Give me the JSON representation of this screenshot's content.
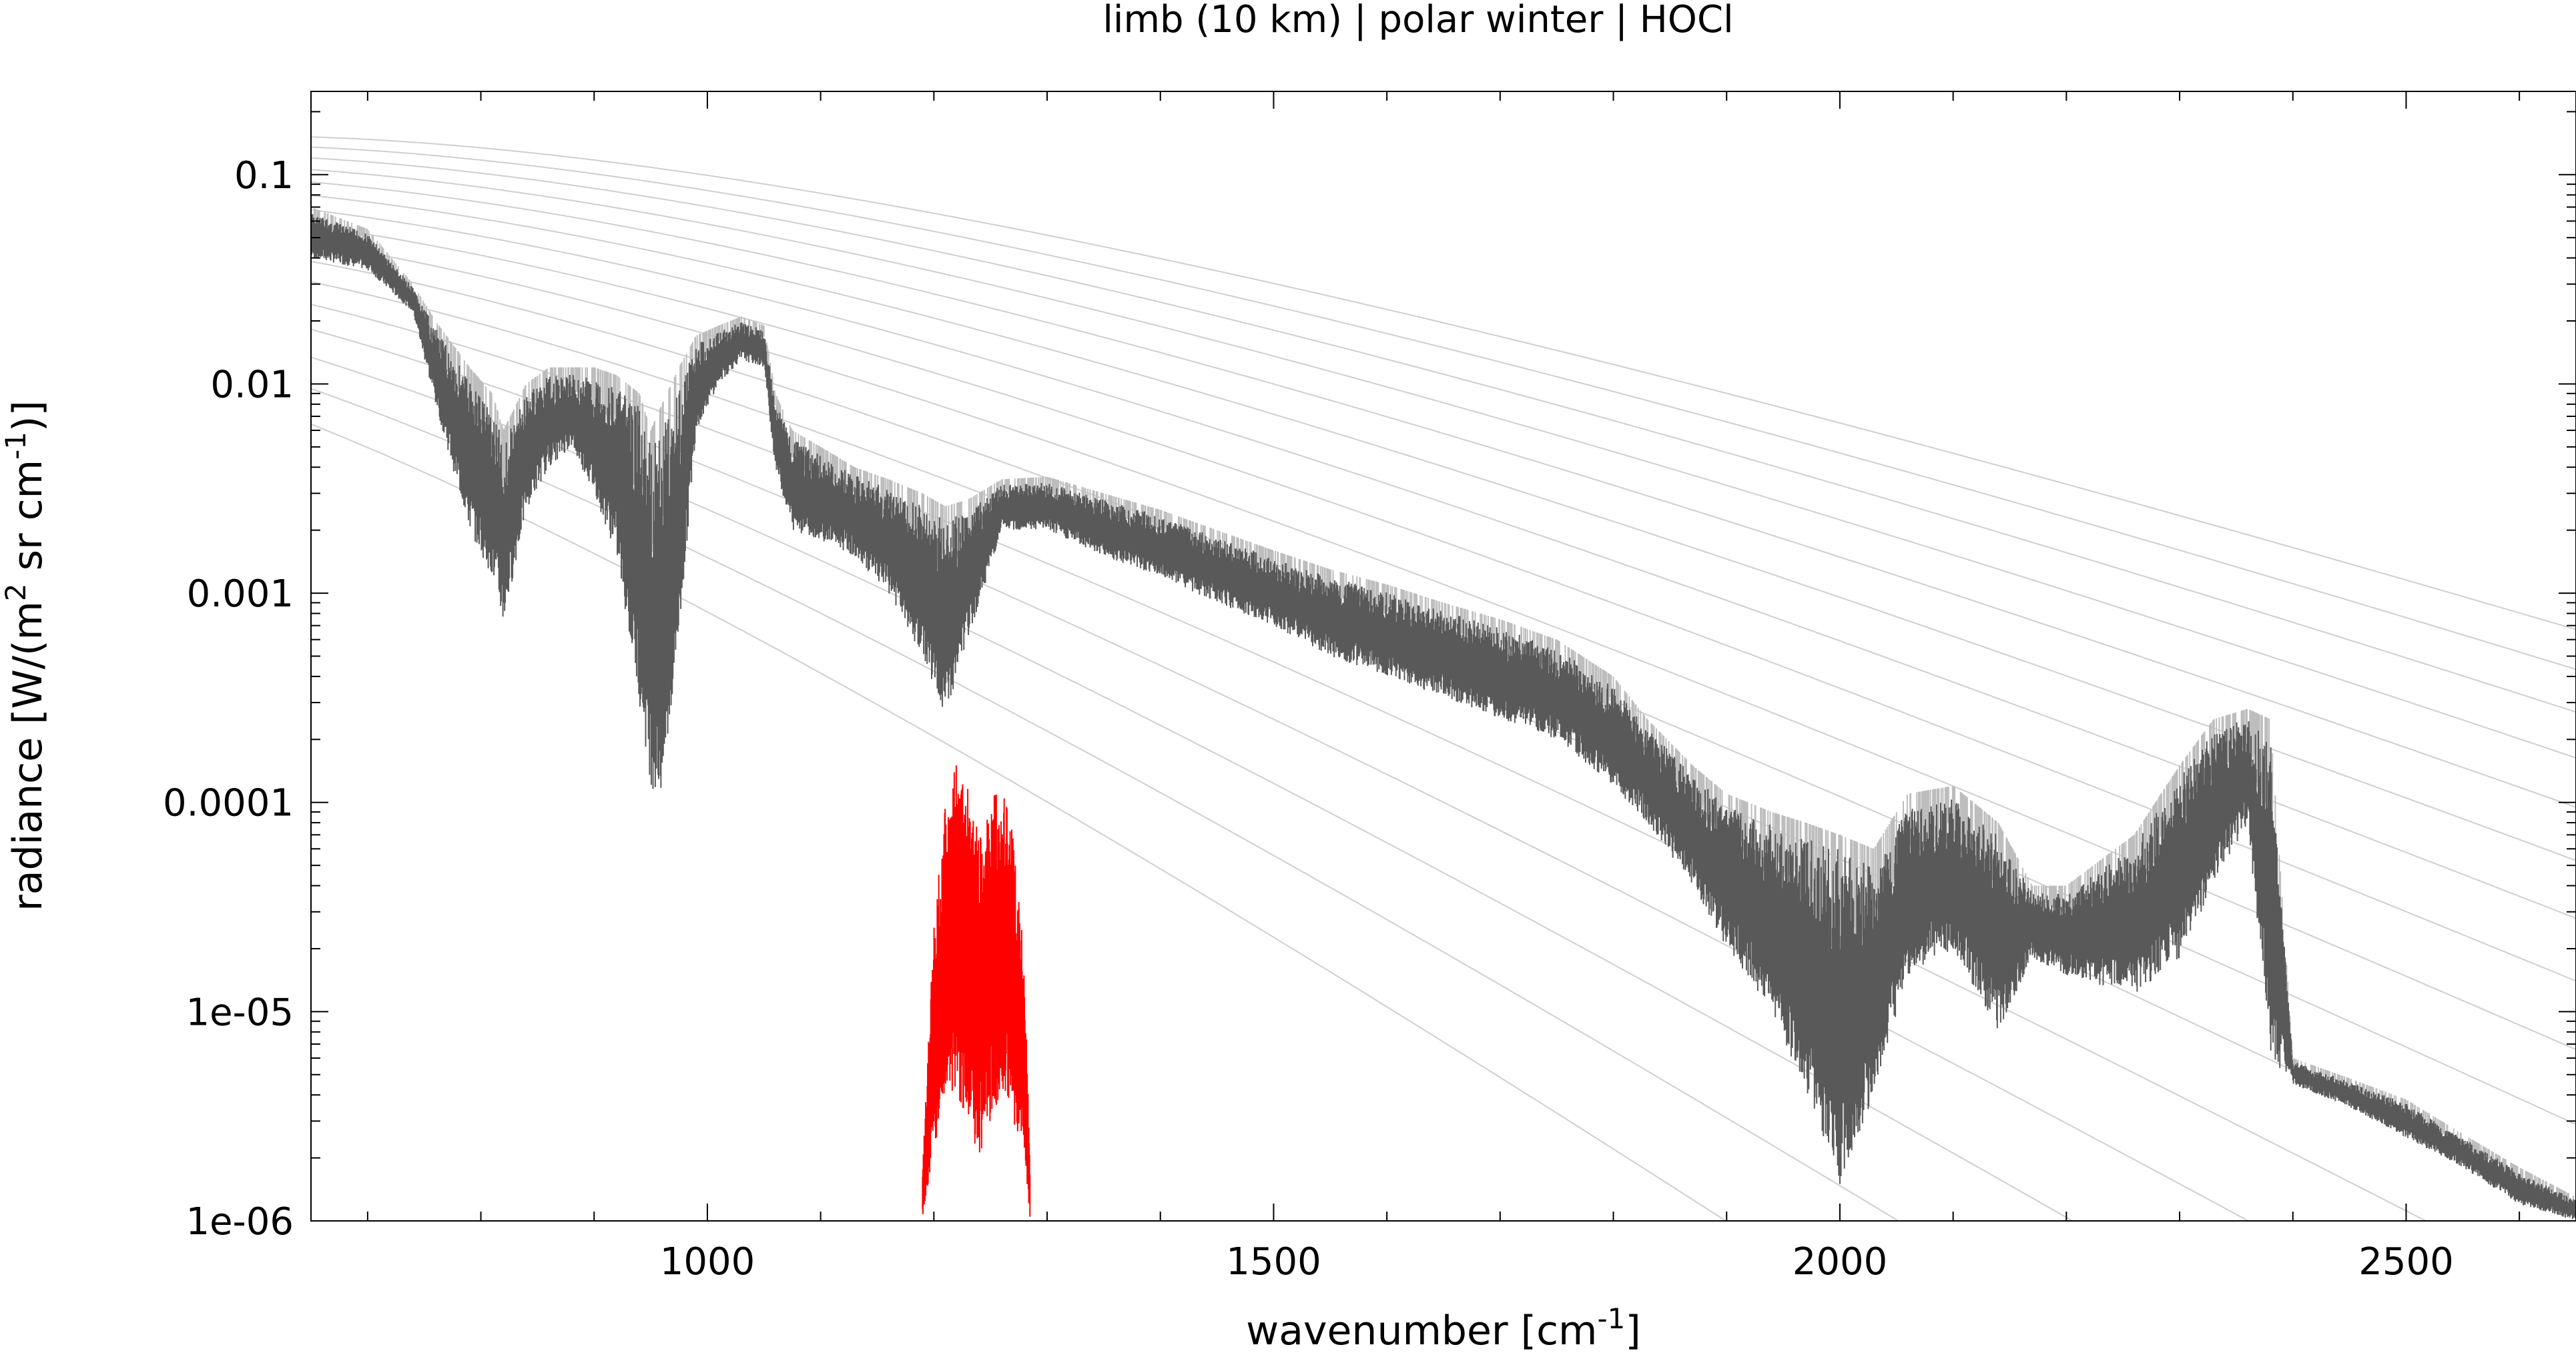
{
  "chart_data": {
    "type": "line",
    "title": "limb (10 km) | polar winter | HOCl",
    "xlabel": {
      "base": "wavenumber [cm",
      "sup": "-1",
      "end": "]"
    },
    "ylabel": {
      "base": "radiance [W/(m",
      "sup1": "2",
      "mid": " sr cm",
      "sup2": "-1",
      "end": ")]"
    },
    "xlim": [
      650,
      2650
    ],
    "ylim": [
      1e-06,
      0.25
    ],
    "yscale": "log",
    "grid": false,
    "legend": "none",
    "x_ticks": [
      1000,
      1500,
      2000,
      2500
    ],
    "x_tick_labels": [
      "1000",
      "1500",
      "2000",
      "2500"
    ],
    "y_ticks": [
      0.1,
      0.01,
      0.001,
      0.0001,
      1e-05,
      1e-06
    ],
    "y_tick_labels": [
      "0.1",
      "0.01",
      "0.001",
      "0.0001",
      "1e-05",
      "1e-06"
    ],
    "colors": {
      "spectrum": "#595959",
      "spectrum_light": "#bdbdbd",
      "hocl": "#ff0000",
      "planck": "#cfcfcf"
    },
    "series": [
      {
        "role": "total spectrum (dark gray envelope)",
        "x": [
          650,
          700,
          740,
          760,
          790,
          810,
          820,
          840,
          860,
          880,
          900,
          920,
          940,
          950,
          960,
          975,
          990,
          1010,
          1030,
          1050,
          1060,
          1075,
          1100,
          1130,
          1160,
          1190,
          1210,
          1230,
          1260,
          1300,
          1350,
          1400,
          1450,
          1500,
          1550,
          1600,
          1650,
          1700,
          1750,
          1800,
          1830,
          1870,
          1900,
          1940,
          1970,
          2000,
          2030,
          2060,
          2100,
          2140,
          2170,
          2200,
          2260,
          2300,
          2330,
          2360,
          2380,
          2400,
          2450,
          2500,
          2550,
          2600,
          2650
        ],
        "low": [
          0.04,
          0.035,
          0.022,
          0.008,
          0.002,
          0.0012,
          0.0007,
          0.0025,
          0.004,
          0.005,
          0.003,
          0.0015,
          0.0003,
          0.00012,
          0.0001,
          0.0006,
          0.006,
          0.01,
          0.013,
          0.012,
          0.004,
          0.002,
          0.0018,
          0.0015,
          0.001,
          0.0005,
          0.00025,
          0.0006,
          0.002,
          0.002,
          0.0015,
          0.0012,
          0.0009,
          0.0007,
          0.0005,
          0.0004,
          0.00032,
          0.00025,
          0.0002,
          0.00012,
          8e-05,
          4e-05,
          2e-05,
          1e-05,
          4e-06,
          1.5e-06,
          4e-06,
          1.5e-05,
          2e-05,
          8e-06,
          1.8e-05,
          1.5e-05,
          1.2e-05,
          1.8e-05,
          4e-05,
          8e-05,
          6e-06,
          4.5e-06,
          3.5e-06,
          2.5e-06,
          1.8e-06,
          1.2e-06,
          1e-06
        ],
        "high": [
          0.07,
          0.055,
          0.03,
          0.02,
          0.012,
          0.009,
          0.006,
          0.01,
          0.012,
          0.012,
          0.012,
          0.011,
          0.009,
          0.006,
          0.008,
          0.012,
          0.017,
          0.019,
          0.021,
          0.019,
          0.009,
          0.006,
          0.005,
          0.004,
          0.0035,
          0.003,
          0.0026,
          0.0028,
          0.0035,
          0.0036,
          0.003,
          0.0025,
          0.002,
          0.0016,
          0.0013,
          0.0011,
          0.0009,
          0.00075,
          0.0006,
          0.0004,
          0.00025,
          0.00015,
          0.00011,
          9e-05,
          8e-05,
          7e-05,
          6e-05,
          0.00011,
          0.00012,
          8e-05,
          4e-05,
          4e-05,
          7e-05,
          0.00015,
          0.00025,
          0.00028,
          0.00025,
          6e-06,
          4.8e-06,
          3.8e-06,
          2.6e-06,
          1.8e-06,
          1.3e-06
        ]
      },
      {
        "role": "HOCl contribution (red)",
        "x": [
          1190,
          1200,
          1210,
          1220,
          1230,
          1240,
          1250,
          1260,
          1270,
          1280,
          1285
        ],
        "low": [
          1e-06,
          2e-06,
          4e-06,
          4e-06,
          3e-06,
          2e-06,
          3e-06,
          4e-06,
          3e-06,
          2e-06,
          1e-06
        ],
        "high": [
          2e-06,
          3e-05,
          0.00012,
          0.00018,
          0.00015,
          8e-05,
          0.00012,
          0.00015,
          8e-05,
          2e-05,
          2e-06
        ]
      }
    ],
    "reference_curves": {
      "role": "Planck blackbody curves (light gray)",
      "temperatures_K": [
        150,
        160,
        170,
        180,
        190,
        200,
        210,
        220,
        230,
        240,
        250,
        260,
        270,
        280,
        290,
        300
      ]
    }
  }
}
